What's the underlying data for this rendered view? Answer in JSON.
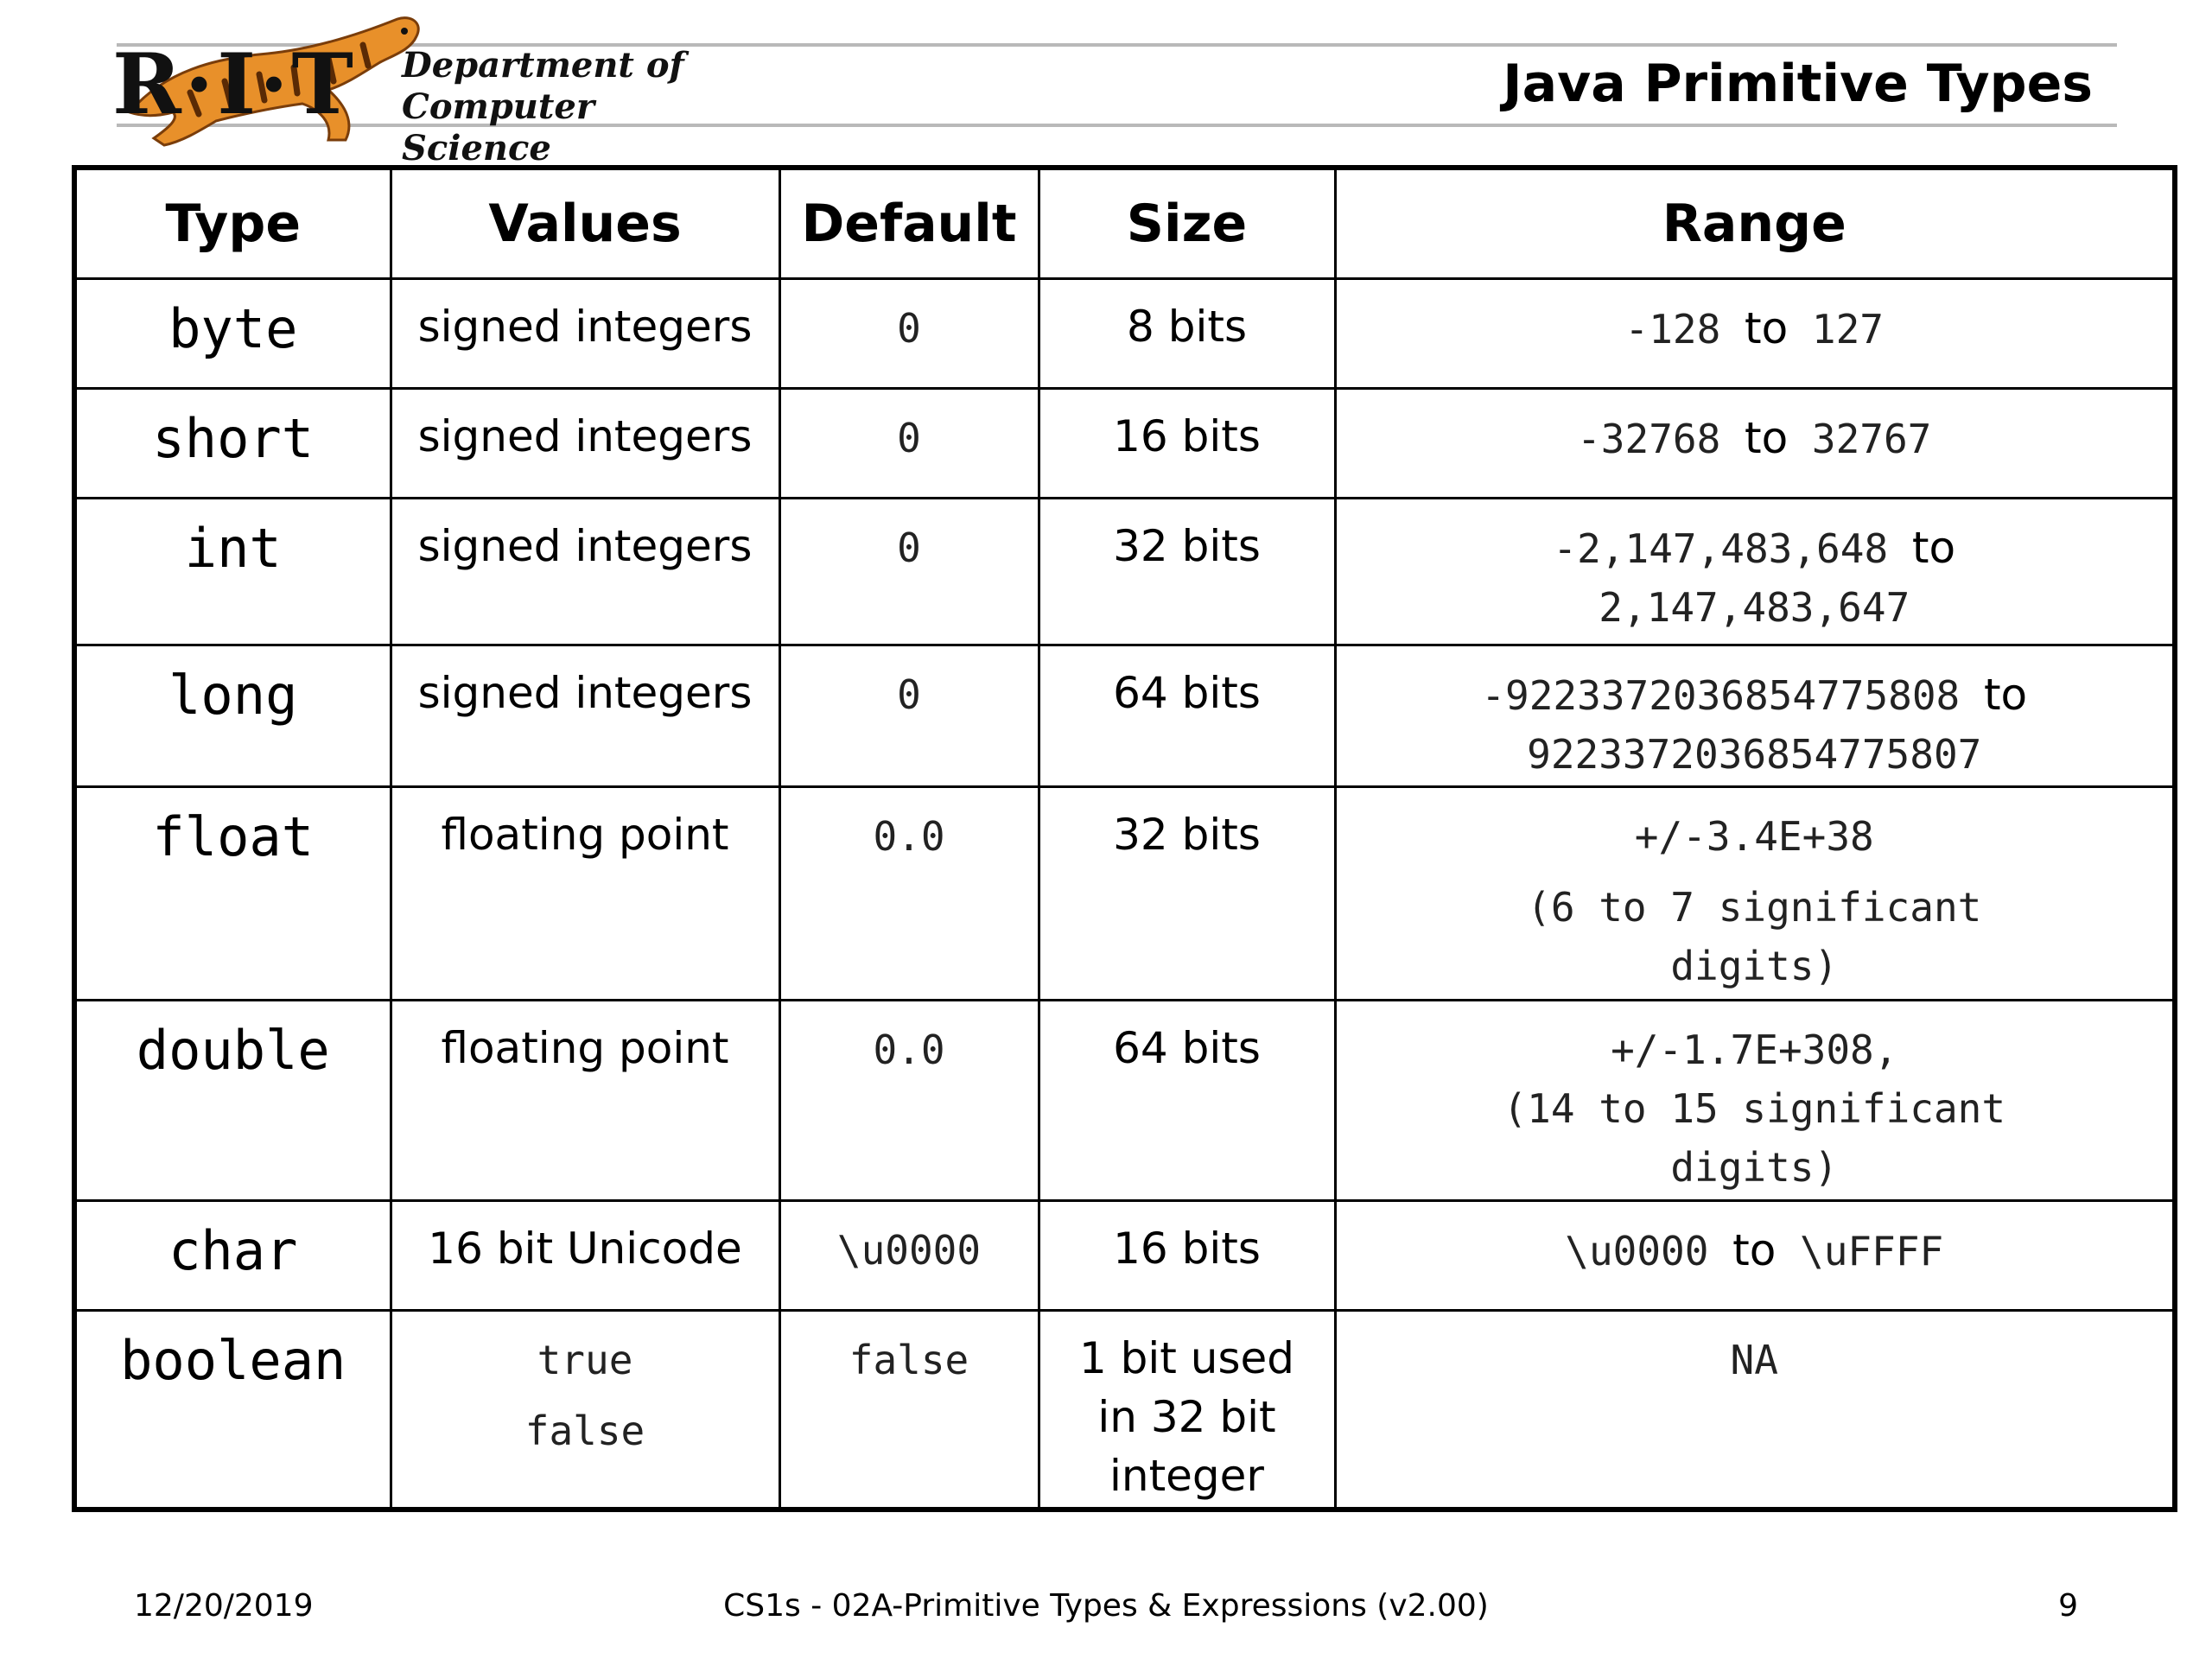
{
  "header": {
    "logo_letters": "R·I·T",
    "department_line1": "Department of",
    "department_line2": "Computer Science",
    "title": "Java Primitive Types"
  },
  "table": {
    "headers": [
      "Type",
      "Values",
      "Default",
      "Size",
      "Range"
    ],
    "rows": [
      {
        "type": "byte",
        "values": [
          "signed integers"
        ],
        "default": "0",
        "size": [
          "8 bits"
        ],
        "range": {
          "line1_start": "-128",
          "line1_to": "to",
          "line1_end": "127",
          "line2": ""
        }
      },
      {
        "type": "short",
        "values": [
          "signed integers"
        ],
        "default": "0",
        "size": [
          "16 bits"
        ],
        "range": {
          "line1_start": "-32768",
          "line1_to": "to",
          "line1_end": "32767",
          "line2": ""
        }
      },
      {
        "type": "int",
        "values": [
          "signed integers"
        ],
        "default": "0",
        "size": [
          "32 bits"
        ],
        "range": {
          "line1_start": "-2,147,483,648",
          "line1_to": "to",
          "line1_end": "",
          "line2": "2,147,483,647"
        }
      },
      {
        "type": "long",
        "values": [
          "signed integers"
        ],
        "default": "0",
        "size": [
          "64 bits"
        ],
        "range": {
          "line1_start": "-9223372036854775808",
          "line1_to": "to",
          "line1_end": "",
          "line2": "9223372036854775807"
        }
      },
      {
        "type": "float",
        "values": [
          "floating point"
        ],
        "default": "0.0",
        "size": [
          "32 bits"
        ],
        "range": {
          "line1": "+/-3.4E+38",
          "line2": "(6 to 7 significant",
          "line3": "digits)"
        }
      },
      {
        "type": "double",
        "values": [
          "floating point"
        ],
        "default": "0.0",
        "size": [
          "64 bits"
        ],
        "range": {
          "line1": "+/-1.7E+308,",
          "line2": "(14 to 15 significant",
          "line3": "digits)"
        }
      },
      {
        "type": "char",
        "values": [
          "16 bit Unicode"
        ],
        "default": "\\u0000",
        "size": [
          "16 bits"
        ],
        "range": {
          "line1_start": "\\u0000",
          "line1_to": "to",
          "line1_end": "\\uFFFF",
          "line2": ""
        }
      },
      {
        "type": "boolean",
        "values": [
          "true",
          "false"
        ],
        "default": "false",
        "size": [
          "1 bit used",
          "in 32 bit",
          "integer"
        ],
        "range": {
          "line1": "NA"
        }
      }
    ]
  },
  "footer": {
    "date": "12/20/2019",
    "course": "CS1s - 02A-Primitive Types & Expressions  (v2.00)",
    "page": "9"
  },
  "colors": {
    "border": "#000000",
    "header_rule": "#b9b9b9",
    "tiger_orange": "#e8902a"
  }
}
